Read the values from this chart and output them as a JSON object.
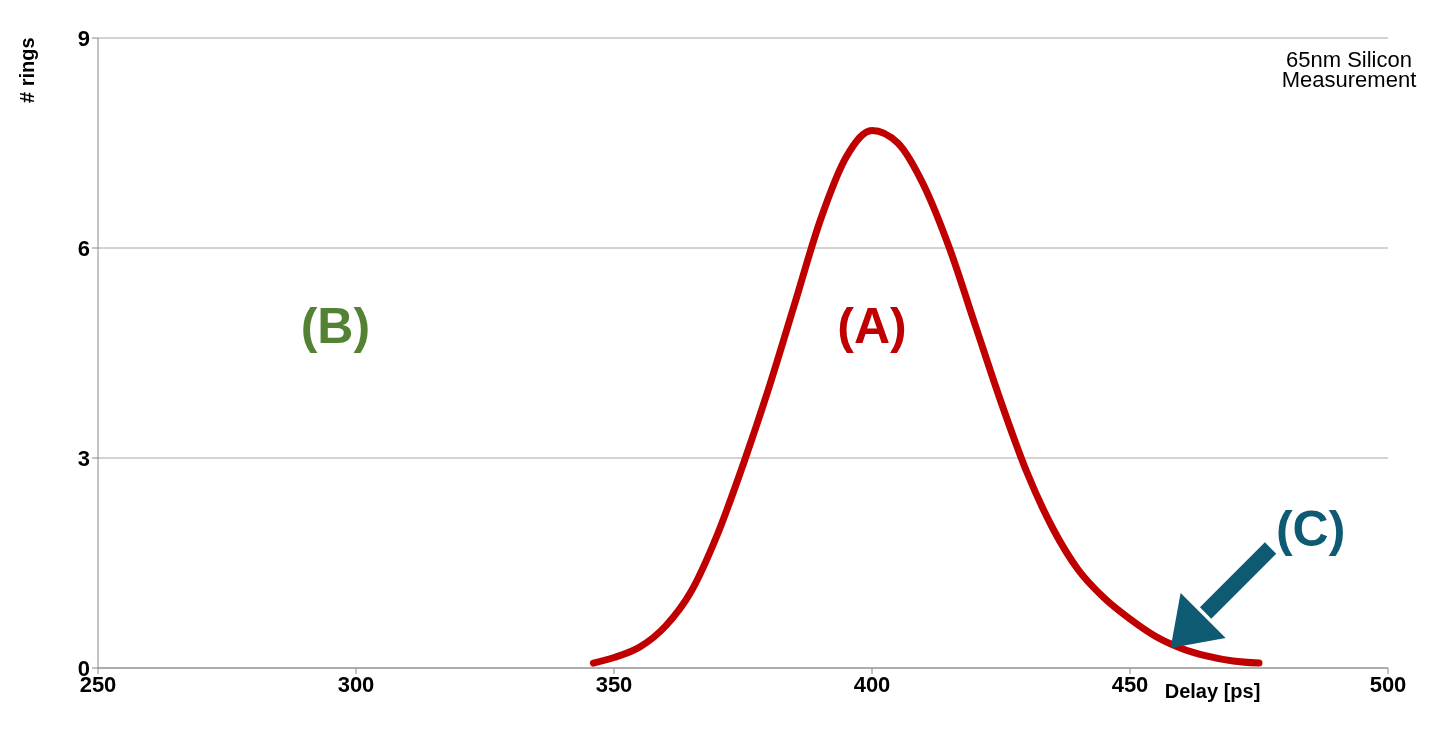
{
  "chart_data": {
    "type": "line",
    "xlabel": "Delay [ps]",
    "ylabel": "# rings",
    "annotations": [
      "65nm Silicon Measurement",
      "(A)",
      "(B)",
      "(C)"
    ],
    "series": [
      {
        "color": "#c00000",
        "x": [
          346,
          350,
          355,
          360,
          365,
          370,
          375,
          380,
          385,
          390,
          395,
          400,
          405,
          410,
          415,
          420,
          425,
          430,
          435,
          440,
          445,
          450,
          455,
          460,
          465,
          470,
          475
        ],
        "values": [
          0.07,
          0.15,
          0.3,
          0.6,
          1.1,
          1.9,
          2.9,
          4.0,
          5.2,
          6.4,
          7.3,
          7.68,
          7.5,
          6.9,
          6.0,
          4.9,
          3.8,
          2.8,
          2.0,
          1.4,
          1.0,
          0.7,
          0.45,
          0.28,
          0.17,
          0.1,
          0.07
        ]
      }
    ],
    "xlim": [
      250,
      500
    ],
    "xticks": [
      250,
      300,
      350,
      400,
      450,
      500
    ],
    "ylim": [
      0,
      9
    ],
    "yticks": [
      0,
      3,
      6,
      9
    ],
    "grid": "y",
    "legend": false,
    "marker": "none",
    "line_style": "solid"
  }
}
